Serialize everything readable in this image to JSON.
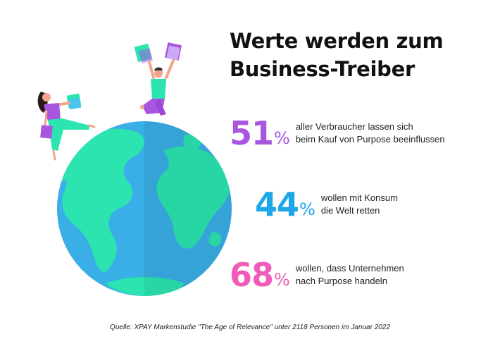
{
  "title_line1": "Werte werden zum",
  "title_line2": "Business-Treiber",
  "colors": {
    "purple": "#A855E0",
    "blue": "#1EA7E8",
    "pink": "#F05AB8",
    "ocean": "#3AAEE6",
    "land": "#2BE4B0"
  },
  "chart_data": {
    "type": "table",
    "unit": "%",
    "items": [
      {
        "value": 51,
        "color": "purple",
        "line1": "aller Verbraucher lassen sich",
        "line2": "beim Kauf von Purpose beeinflussen"
      },
      {
        "value": 44,
        "color": "blue",
        "line1": "wollen mit Konsum",
        "line2": "die Welt retten"
      },
      {
        "value": 68,
        "color": "pink",
        "line1": "wollen, dass Unternehmen",
        "line2": "nach Purpose handeln"
      }
    ]
  },
  "source": "Quelle: XPAY Markenstudie \"The Age of Relevance\" unter 2118 Personen im Januar 2022"
}
